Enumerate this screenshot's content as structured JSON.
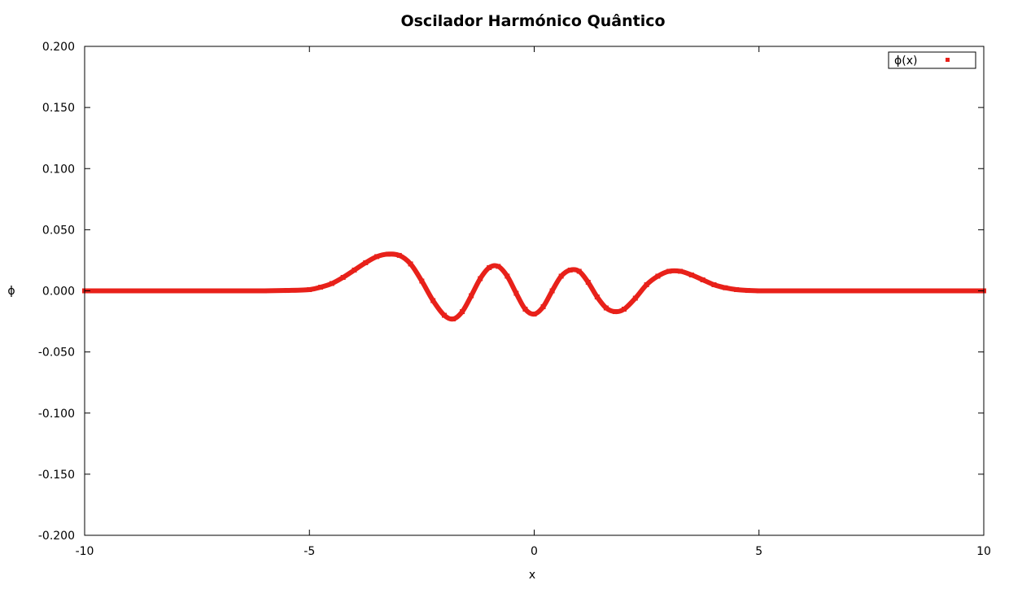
{
  "chart_data": {
    "type": "scatter",
    "title": "Oscilador Harmónico Quântico",
    "xlabel": "x",
    "ylabel": "ϕ",
    "xlim": [
      -10,
      10
    ],
    "ylim": [
      -0.2,
      0.2
    ],
    "xticks": [
      -10,
      -5,
      0,
      5,
      10
    ],
    "xtick_labels": [
      "-10",
      "-5",
      "0",
      "5",
      "10"
    ],
    "yticks": [
      0.2,
      0.15,
      0.1,
      0.05,
      0.0,
      -0.05,
      -0.1,
      -0.15,
      -0.2
    ],
    "ytick_labels": [
      "0.200",
      "0.150",
      "0.100",
      "0.050",
      "0.000",
      "-0.050",
      "-0.100",
      "-0.150",
      "-0.200"
    ],
    "grid": false,
    "legend_position": "top-right",
    "series": [
      {
        "name": "ϕ(x)",
        "color": "#e8211a",
        "marker": "square",
        "x": [
          -10,
          -9,
          -8,
          -7,
          -6,
          -5.5,
          -5,
          -4.75,
          -4.5,
          -4.25,
          -4,
          -3.75,
          -3.5,
          -3.25,
          -3,
          -2.75,
          -2.5,
          -2.25,
          -2,
          -1.8,
          -1.6,
          -1.4,
          -1.2,
          -1,
          -0.8,
          -0.6,
          -0.4,
          -0.2,
          0,
          0.2,
          0.4,
          0.6,
          0.8,
          1,
          1.2,
          1.4,
          1.6,
          1.8,
          2,
          2.25,
          2.5,
          2.75,
          3,
          3.25,
          3.5,
          3.75,
          4,
          4.25,
          4.5,
          4.75,
          5,
          5.5,
          6,
          7,
          8,
          9,
          10
        ],
        "y": [
          0,
          0,
          0,
          0,
          0,
          0.0003,
          0.001,
          0.003,
          0.006,
          0.011,
          0.017,
          0.023,
          0.028,
          0.03,
          0.029,
          0.022,
          0.008,
          -0.008,
          -0.02,
          -0.023,
          -0.017,
          -0.004,
          0.01,
          0.019,
          0.02,
          0.012,
          -0.002,
          -0.015,
          -0.019,
          -0.013,
          0.0,
          0.012,
          0.017,
          0.016,
          0.007,
          -0.005,
          -0.014,
          -0.017,
          -0.015,
          -0.006,
          0.005,
          0.012,
          0.016,
          0.016,
          0.013,
          0.009,
          0.005,
          0.0025,
          0.001,
          0.0003,
          0,
          0,
          0,
          0,
          0,
          0,
          0
        ]
      }
    ]
  }
}
